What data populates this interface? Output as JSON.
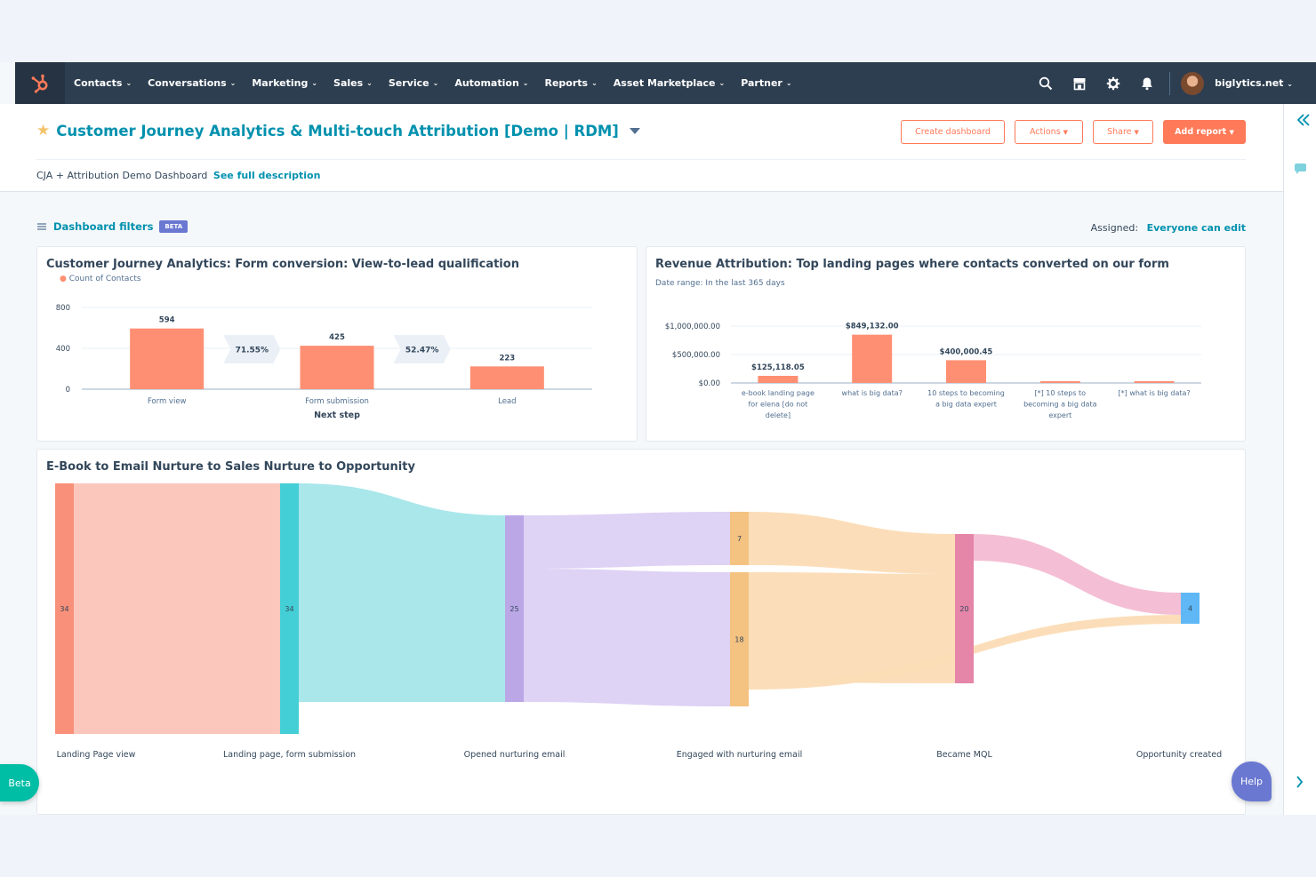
{
  "nav": {
    "items": [
      "Contacts",
      "Conversations",
      "Marketing",
      "Sales",
      "Service",
      "Automation",
      "Reports",
      "Asset Marketplace",
      "Partner"
    ],
    "account": "biglytics.net"
  },
  "header": {
    "title": "Customer Journey Analytics & Multi-touch Attribution [Demo | RDM]",
    "buttons": {
      "create": "Create dashboard",
      "actions": "Actions",
      "share": "Share",
      "add_report": "Add report"
    },
    "description": "CJA + Attribution Demo Dashboard",
    "description_link": "See full description"
  },
  "filters": {
    "label": "Dashboard filters",
    "badge": "BETA",
    "assigned_label": "Assigned:",
    "assigned_value": "Everyone can edit"
  },
  "funnel": {
    "title": "Customer Journey Analytics: Form conversion: View-to-lead qualification",
    "legend": "Count of Contacts",
    "xlabel": "Next step",
    "chart_data": {
      "type": "bar",
      "categories": [
        "Form view",
        "Form submission",
        "Lead"
      ],
      "values": [
        594,
        425,
        223
      ],
      "ylim": [
        0,
        800
      ],
      "yticks": [
        "800",
        "400",
        "0"
      ],
      "value_labels": [
        "594",
        "425",
        "223"
      ],
      "conversion_labels": [
        "71.55%",
        "52.47%"
      ],
      "color": "#ff8f73"
    }
  },
  "revenue": {
    "title": "Revenue Attribution: Top landing pages where contacts converted on our form",
    "subtitle": "Date range: In the last 365 days",
    "chart_data": {
      "type": "bar",
      "categories": [
        [
          "e-book landing page",
          "for elena [do not",
          "delete]"
        ],
        [
          "what is big data?"
        ],
        [
          "10 steps to becoming",
          "a big data expert"
        ],
        [
          "[*] 10 steps to",
          "becoming a big data",
          "expert"
        ],
        [
          "[*] what is big data?"
        ]
      ],
      "values": [
        125118.05,
        849132.0,
        400000.45,
        0,
        0
      ],
      "value_labels": [
        "$125,118.05",
        "$849,132.00",
        "$400,000.45",
        "",
        ""
      ],
      "ylim": [
        0,
        1000000
      ],
      "yticks": [
        "$1,000,000.00",
        "$500,000.00",
        "$0.00"
      ],
      "color": "#ff8f73"
    }
  },
  "sankey": {
    "title": "E-Book to Email Nurture to Sales Nurture to Opportunity",
    "stages": [
      "Landing Page view",
      "Landing page, form submission",
      "Opened nurturing email",
      "Engaged with nurturing email",
      "Became MQL",
      "Opportunity created"
    ],
    "chart_data": {
      "type": "sankey",
      "nodes": [
        {
          "stage": "Landing Page view",
          "value": 34,
          "label": "34",
          "color": "#f9907a"
        },
        {
          "stage": "Landing page, form submission",
          "value": 34,
          "label": "34",
          "color": "#44cfd6"
        },
        {
          "stage": "Opened nurturing email",
          "value": 25,
          "label": "25",
          "color": "#bba7e6"
        },
        {
          "stage": "Engaged with nurturing email",
          "value": 7,
          "label": "7",
          "color": "#f4c281"
        },
        {
          "stage": "Engaged with nurturing email",
          "value": 18,
          "label": "18",
          "color": "#f4c281"
        },
        {
          "stage": "Became MQL",
          "value": 20,
          "label": "20",
          "color": "#e585a8"
        },
        {
          "stage": "Opportunity created",
          "value": 4,
          "label": "4",
          "color": "#5fb8f5"
        }
      ],
      "links": [
        {
          "from": "Landing Page view",
          "to": "Landing page, form submission",
          "value": 34
        },
        {
          "from": "Landing page, form submission",
          "to": "Opened nurturing email",
          "value": 25
        },
        {
          "from": "Opened nurturing email",
          "to": "Engaged with nurturing email (7)",
          "value": 7
        },
        {
          "from": "Opened nurturing email",
          "to": "Engaged with nurturing email (18)",
          "value": 18
        },
        {
          "from": "Engaged with nurturing email (7)",
          "to": "Became MQL",
          "value": 7
        },
        {
          "from": "Engaged with nurturing email (18)",
          "to": "Became MQL",
          "value": 13
        },
        {
          "from": "Became MQL",
          "to": "Opportunity created",
          "value": 3
        },
        {
          "from": "Engaged with nurturing email (18)",
          "to": "Opportunity created",
          "value": 1
        }
      ]
    }
  },
  "widgets": {
    "beta": "Beta",
    "help": "Help"
  },
  "colors": {
    "nav_bg": "#2d3e50",
    "accent": "#ff7a59",
    "link": "#0091ae"
  }
}
